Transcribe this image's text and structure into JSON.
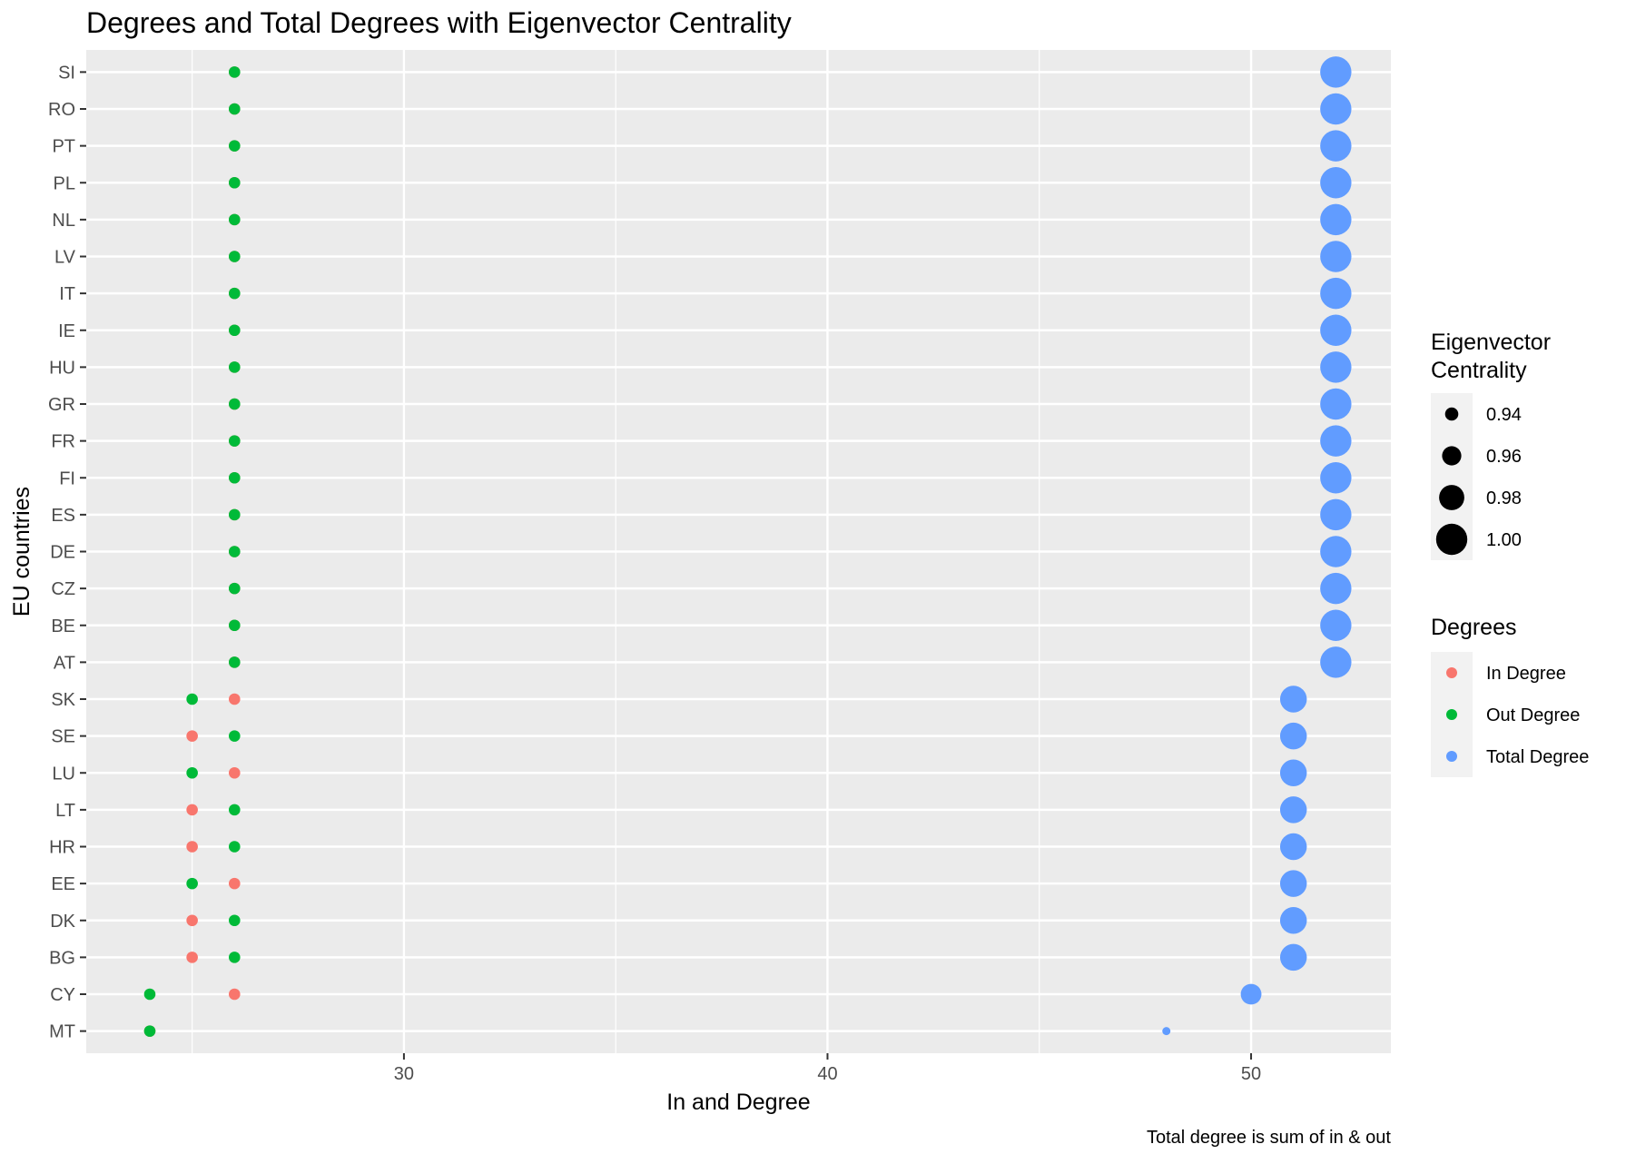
{
  "chart_data": {
    "type": "scatter",
    "title": "Degrees and Total Degrees with Eigenvector Centrality",
    "subtitle": "",
    "xlabel": "In and Degree",
    "ylabel": "EU countries",
    "caption": "Total degree is sum of in & out",
    "xlim": [
      22.5,
      53.3
    ],
    "x_ticks": [
      30,
      40,
      50
    ],
    "categories": [
      "MT",
      "CY",
      "BG",
      "DK",
      "EE",
      "HR",
      "LT",
      "LU",
      "SE",
      "SK",
      "AT",
      "BE",
      "CZ",
      "DE",
      "ES",
      "FI",
      "FR",
      "GR",
      "HU",
      "IE",
      "IT",
      "LV",
      "NL",
      "PL",
      "PT",
      "RO",
      "SI"
    ],
    "grid": true,
    "legend_position": "right",
    "colors": {
      "panel": "#EBEBEB",
      "grid": "#FFFFFF",
      "in_degree": "#F8766D",
      "out_degree": "#00BA38",
      "total_degree": "#619CFF"
    },
    "series": [
      {
        "name": "In Degree",
        "values": [
          24,
          26,
          25,
          25,
          26,
          25,
          25,
          26,
          25,
          26,
          26,
          26,
          26,
          26,
          26,
          26,
          26,
          26,
          26,
          26,
          26,
          26,
          26,
          26,
          26,
          26,
          26
        ]
      },
      {
        "name": "Out Degree",
        "values": [
          24,
          24,
          26,
          26,
          25,
          26,
          26,
          25,
          26,
          25,
          26,
          26,
          26,
          26,
          26,
          26,
          26,
          26,
          26,
          26,
          26,
          26,
          26,
          26,
          26,
          26,
          26
        ]
      },
      {
        "name": "Total Degree",
        "values": [
          48,
          50,
          51,
          51,
          51,
          51,
          51,
          51,
          51,
          51,
          52,
          52,
          52,
          52,
          52,
          52,
          52,
          52,
          52,
          52,
          52,
          52,
          52,
          52,
          52,
          52,
          52
        ]
      }
    ],
    "eigenvector_centrality": [
      0.923,
      0.965,
      0.985,
      0.985,
      0.985,
      0.985,
      0.985,
      0.985,
      0.985,
      0.985,
      1.0,
      1.0,
      1.0,
      1.0,
      1.0,
      1.0,
      1.0,
      1.0,
      1.0,
      1.0,
      1.0,
      1.0,
      1.0,
      1.0,
      1.0,
      1.0,
      1.0
    ],
    "legends": {
      "size": {
        "title_line1": "Eigenvector",
        "title_line2": "Centrality",
        "breaks": [
          0.94,
          0.96,
          0.98,
          1.0
        ],
        "labels": [
          "0.94",
          "0.96",
          "0.98",
          "1.00"
        ]
      },
      "color": {
        "title": "Degrees",
        "labels": [
          "In Degree",
          "Out Degree",
          "Total Degree"
        ]
      }
    }
  }
}
